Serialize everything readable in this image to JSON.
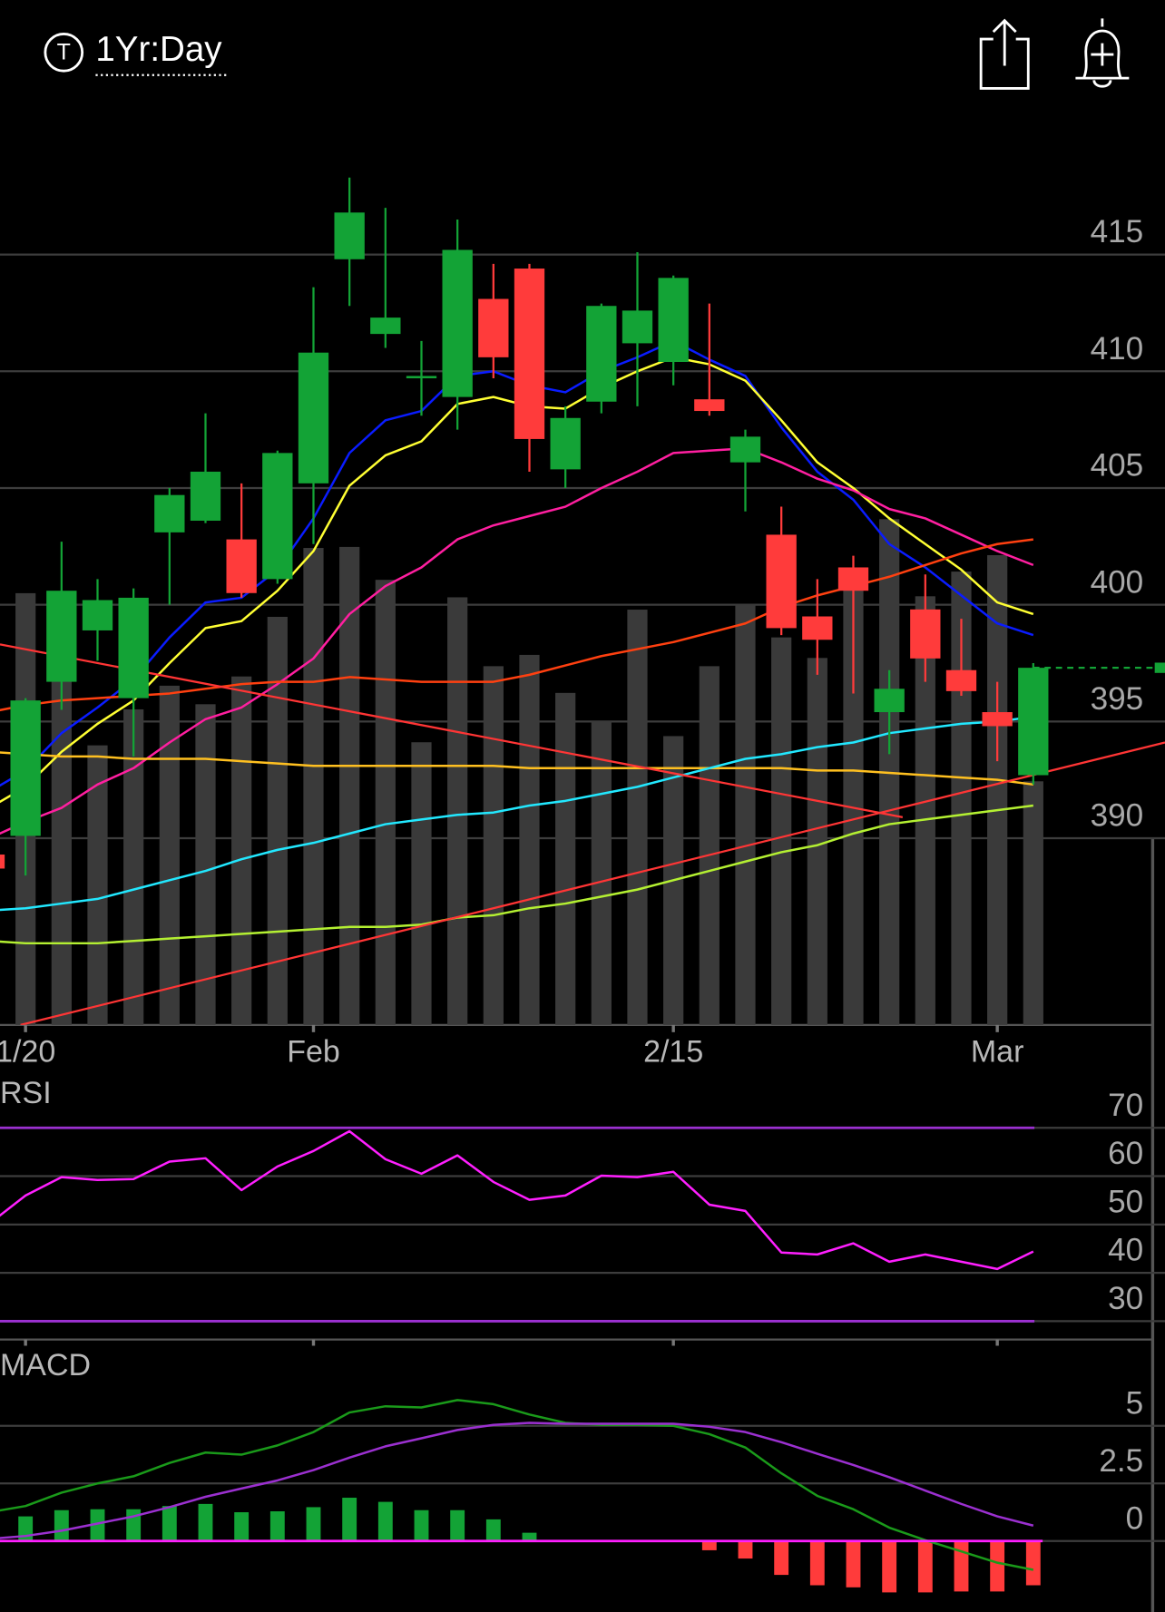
{
  "header": {
    "symbol_icon": "T",
    "timeframe": "1Yr:Day"
  },
  "chart_data": [
    {
      "type": "candlestick",
      "categories": [
        null,
        "1/20",
        null,
        null,
        null,
        null,
        null,
        null,
        null,
        "Feb",
        null,
        null,
        null,
        null,
        null,
        null,
        null,
        null,
        null,
        "2/15",
        null,
        null,
        null,
        null,
        null,
        null,
        null,
        null,
        "Mar",
        null
      ],
      "open": [
        389.3,
        390.1,
        396.7,
        398.9,
        396.0,
        403.1,
        403.6,
        402.8,
        401.1,
        405.2,
        414.8,
        411.6,
        409.7,
        408.9,
        413.1,
        414.4,
        405.8,
        408.7,
        411.2,
        410.4,
        408.8,
        406.1,
        403.0,
        399.5,
        401.6,
        395.4,
        399.8,
        397.2,
        395.4,
        392.7
      ],
      "high": [
        389.3,
        396.0,
        402.7,
        401.1,
        400.7,
        405.0,
        408.2,
        405.2,
        406.6,
        413.6,
        418.3,
        417.0,
        411.3,
        416.5,
        414.6,
        414.6,
        408.5,
        412.9,
        415.1,
        414.1,
        412.9,
        407.5,
        404.2,
        401.1,
        402.1,
        397.2,
        401.3,
        399.4,
        396.7,
        397.5
      ],
      "low": [
        388.7,
        388.4,
        395.5,
        397.6,
        393.5,
        400.0,
        403.5,
        400.3,
        400.9,
        402.6,
        412.8,
        411.0,
        408.1,
        407.5,
        409.7,
        405.7,
        405.0,
        408.2,
        408.5,
        409.4,
        408.1,
        404.0,
        398.7,
        397.0,
        396.2,
        393.6,
        396.7,
        396.1,
        393.3,
        392.3
      ],
      "close": [
        388.7,
        395.9,
        400.6,
        400.2,
        400.3,
        404.7,
        405.7,
        400.5,
        406.5,
        410.8,
        416.8,
        412.3,
        409.8,
        415.2,
        410.6,
        407.1,
        408.0,
        412.8,
        412.6,
        414.0,
        408.3,
        407.2,
        399.0,
        398.5,
        400.6,
        396.4,
        397.7,
        396.3,
        394.8,
        397.3
      ],
      "up_color": "#13a336",
      "down_color": "#ff3b3b",
      "volume": [
        397,
        420,
        377,
        272,
        307,
        330,
        312,
        339,
        397,
        464,
        465,
        433,
        275,
        416,
        349,
        360,
        323,
        296,
        404,
        281,
        349,
        409,
        377,
        357,
        437,
        492,
        417,
        441,
        457,
        237
      ],
      "volume_color": "#3a3a3a",
      "volume_ylim": [
        0,
        897
      ],
      "series": [
        {
          "color": "#0a1cff",
          "values": [
            392.0,
            392.9,
            394.5,
            395.6,
            396.8,
            398.6,
            400.1,
            400.3,
            401.5,
            403.7,
            406.5,
            407.9,
            408.3,
            409.8,
            410.0,
            409.4,
            409.1,
            410.0,
            410.6,
            411.3,
            410.5,
            409.8,
            407.6,
            405.7,
            404.5,
            402.6,
            401.6,
            400.4,
            399.2,
            398.7
          ]
        },
        {
          "color": "#ffff33",
          "values": [
            391.3,
            392.2,
            393.7,
            394.9,
            395.9,
            397.5,
            399.0,
            399.3,
            400.6,
            402.3,
            405.1,
            406.4,
            407.0,
            408.6,
            408.9,
            408.5,
            408.4,
            409.3,
            410.0,
            410.6,
            410.3,
            409.6,
            407.9,
            406.1,
            405.0,
            403.7,
            402.6,
            401.5,
            400.1,
            399.6
          ]
        },
        {
          "color": "#ff1fa0",
          "values": [
            390.0,
            390.7,
            391.3,
            392.3,
            393.0,
            394.1,
            395.1,
            395.6,
            396.6,
            397.7,
            399.6,
            400.8,
            401.6,
            402.8,
            403.4,
            403.8,
            404.2,
            405.0,
            405.7,
            406.5,
            406.6,
            406.7,
            406.1,
            405.4,
            404.9,
            404.1,
            403.7,
            403.0,
            402.3,
            401.7
          ]
        },
        {
          "color": "#ff4010",
          "values": [
            395.4,
            395.7,
            395.9,
            396.0,
            396.1,
            396.2,
            396.4,
            396.6,
            396.7,
            396.7,
            396.9,
            396.8,
            396.7,
            396.7,
            396.7,
            397.0,
            397.4,
            397.8,
            398.1,
            398.4,
            398.8,
            399.2,
            399.9,
            400.4,
            400.8,
            401.2,
            401.7,
            402.2,
            402.6,
            402.8
          ]
        },
        {
          "color": "#ffc020",
          "values": [
            393.7,
            393.6,
            393.5,
            393.5,
            393.4,
            393.4,
            393.4,
            393.3,
            393.2,
            393.1,
            393.1,
            393.1,
            393.1,
            393.1,
            393.1,
            393.0,
            393.0,
            393.0,
            393.0,
            393.0,
            393.0,
            393.0,
            393.0,
            392.9,
            392.9,
            392.8,
            392.7,
            392.6,
            392.5,
            392.3
          ]
        },
        {
          "color": "#22e8ff",
          "values": [
            386.9,
            387.0,
            387.2,
            387.4,
            387.8,
            388.2,
            388.6,
            389.1,
            389.5,
            389.8,
            390.2,
            390.6,
            390.8,
            391.0,
            391.1,
            391.4,
            391.6,
            391.9,
            392.2,
            392.6,
            393.0,
            393.4,
            393.6,
            393.9,
            394.1,
            394.5,
            394.7,
            394.9,
            395.0,
            395.2
          ]
        },
        {
          "color": "#b4f032",
          "values": [
            385.6,
            385.5,
            385.5,
            385.5,
            385.6,
            385.7,
            385.8,
            385.9,
            386.0,
            386.1,
            386.2,
            386.2,
            386.3,
            386.6,
            386.7,
            387.0,
            387.2,
            387.5,
            387.8,
            388.2,
            388.6,
            389.0,
            389.4,
            389.7,
            390.2,
            390.6,
            390.8,
            391.0,
            391.2,
            391.4
          ]
        }
      ],
      "trendlines": [
        {
          "color": "#ff3535",
          "x": [
            0.29,
            25.37
          ],
          "values": [
            398.3,
            390.9
          ]
        },
        {
          "color": "#ff3535",
          "x": [
            0.86,
            32.66
          ],
          "values": [
            382.0,
            394.1
          ]
        }
      ],
      "xlim": [
        0.29,
        32.66
      ],
      "ylim": [
        382.0,
        421.5
      ],
      "yticks": [
        390,
        395,
        400,
        405,
        410,
        415
      ],
      "grid": true
    },
    {
      "type": "line",
      "title": "RSI",
      "series": [
        {
          "color": "#ff1fff",
          "values": [
            50.2,
            56.0,
            59.8,
            59.2,
            59.4,
            63.0,
            63.7,
            57.1,
            62.0,
            65.2,
            69.3,
            63.5,
            60.5,
            64.3,
            58.8,
            55.1,
            56.0,
            60.1,
            59.8,
            60.9,
            54.1,
            52.8,
            44.2,
            43.8,
            46.1,
            42.3,
            43.8,
            42.3,
            40.8,
            44.4
          ]
        }
      ],
      "levels": [
        70,
        30
      ],
      "level_color": "#9b30d0",
      "xlim": [
        0.29,
        32.66
      ],
      "ylim": [
        26.2,
        80
      ],
      "yticks": [
        30,
        40,
        50,
        60,
        70
      ],
      "grid": true
    },
    {
      "type": "macd",
      "title": "MACD",
      "series": [
        {
          "color": "#1a9a1a",
          "values": [
            1.25,
            1.52,
            2.1,
            2.5,
            2.81,
            3.39,
            3.84,
            3.75,
            4.15,
            4.73,
            5.58,
            5.85,
            5.8,
            6.12,
            5.94,
            5.49,
            5.13,
            5.04,
            5.04,
            5.0,
            4.64,
            4.06,
            2.94,
            1.96,
            1.38,
            0.58,
            0.04,
            -0.45,
            -0.94,
            -1.25
          ]
        },
        {
          "color": "#9b30d0",
          "values": [
            0.09,
            0.22,
            0.45,
            0.76,
            1.07,
            1.47,
            1.92,
            2.28,
            2.63,
            3.08,
            3.62,
            4.11,
            4.46,
            4.82,
            5.04,
            5.13,
            5.09,
            5.09,
            5.09,
            5.09,
            4.96,
            4.73,
            4.29,
            3.79,
            3.3,
            2.77,
            2.19,
            1.61,
            1.07,
            0.67
          ]
        }
      ],
      "histogram": [
        1.2,
        1.07,
        1.34,
        1.38,
        1.38,
        1.52,
        1.61,
        1.25,
        1.29,
        1.47,
        1.88,
        1.7,
        1.34,
        1.34,
        0.94,
        0.36,
        0,
        0,
        0,
        0,
        -0.4,
        -0.76,
        -1.47,
        -1.92,
        -2.01,
        -2.23,
        -2.23,
        -2.19,
        -2.19,
        -1.92
      ],
      "up_color": "#13a336",
      "down_color": "#ff3b3b",
      "zero_line_color": "#ff1fff",
      "xlim": [
        0.29,
        32.66
      ],
      "ylim": [
        -3.08,
        8.21
      ],
      "yticks": [
        0,
        2.5,
        5
      ],
      "grid": true
    }
  ]
}
